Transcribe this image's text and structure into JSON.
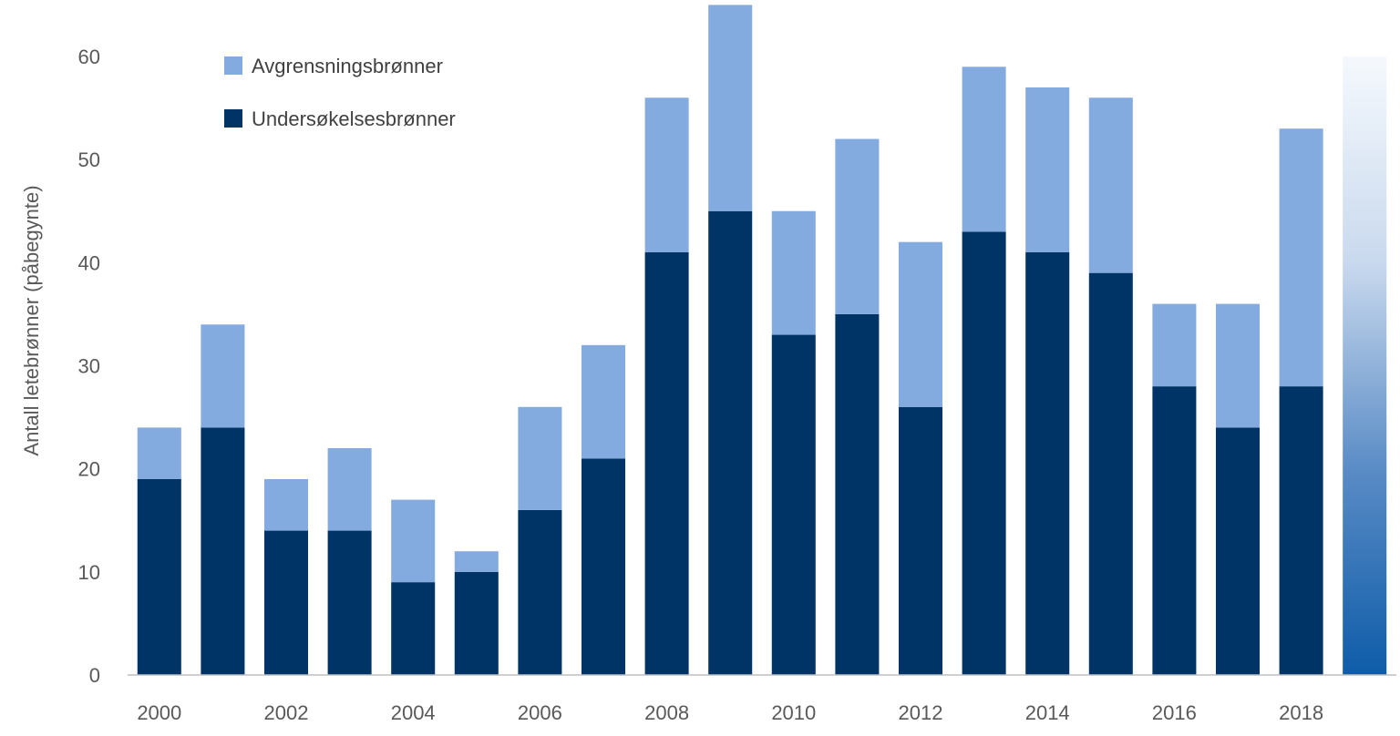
{
  "chart_data": {
    "type": "bar",
    "stacked": true,
    "title": "",
    "xlabel": "",
    "ylabel": "Antall letebrønner (påbegynte)",
    "categories": [
      "2000",
      "2001",
      "2002",
      "2003",
      "2004",
      "2005",
      "2006",
      "2007",
      "2008",
      "2009",
      "2010",
      "2011",
      "2012",
      "2013",
      "2014",
      "2015",
      "2016",
      "2017",
      "2018",
      "2019"
    ],
    "x_tick_labels": [
      "2000",
      "2002",
      "2004",
      "2006",
      "2008",
      "2010",
      "2012",
      "2014",
      "2016",
      "2018"
    ],
    "ylim": [
      0,
      60
    ],
    "y_ticks": [
      0,
      10,
      20,
      30,
      40,
      50,
      60
    ],
    "grid": false,
    "legend_position": "top-left",
    "series": [
      {
        "name": "Undersøkelsesbrønner",
        "color": "#003366",
        "values": [
          19,
          24,
          14,
          14,
          9,
          10,
          16,
          21,
          41,
          45,
          33,
          35,
          26,
          43,
          41,
          39,
          28,
          24,
          28,
          null
        ]
      },
      {
        "name": "Avgrensningsbrønner",
        "color": "#84ABDF",
        "values": [
          5,
          10,
          5,
          8,
          8,
          2,
          10,
          11,
          15,
          20,
          12,
          17,
          16,
          16,
          16,
          17,
          8,
          12,
          25,
          null
        ]
      }
    ],
    "forecast_bar": {
      "category": "2019",
      "value": 60,
      "gradient_colors": [
        "#0E5CA8",
        "#5A8CC6",
        "#C9D9EE",
        "#F5F9FD"
      ]
    },
    "legend": [
      {
        "label": "Avgrensningsbrønner",
        "color": "#84ABDF"
      },
      {
        "label": "Undersøkelsesbrønner",
        "color": "#003366"
      }
    ]
  }
}
